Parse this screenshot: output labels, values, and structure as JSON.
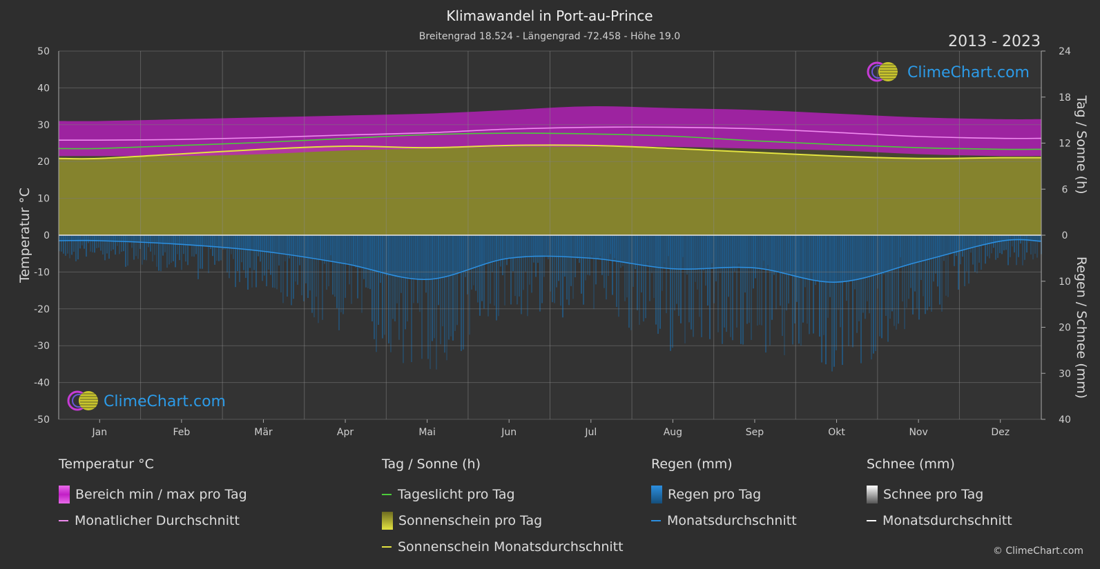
{
  "title": "Klimawandel in Port-au-Prince",
  "subtitle": "Breitengrad 18.524 - Längengrad -72.458 - Höhe 19.0",
  "year_range": "2013 - 2023",
  "brand": "ClimeChart.com",
  "copyright": "© ClimeChart.com",
  "colors": {
    "background": "#2e2e2e",
    "temp_range": "#c21fc6",
    "temp_mean": "#f08cf0",
    "daylight": "#4ccc3a",
    "sunshine_fill": "#8e8c2c",
    "sunshine_mean": "#e3e341",
    "rain": "#1a6fb0",
    "rain_mean": "#2c8fe0",
    "snow_mean": "#ffffff",
    "brand": "#2c9be8"
  },
  "legend": {
    "temp": {
      "header": "Temperatur °C",
      "range": "Bereich min / max pro Tag",
      "mean": "Monatlicher Durchschnitt"
    },
    "sun": {
      "header": "Tag / Sonne (h)",
      "daylight": "Tageslicht pro Tag",
      "sunshine": "Sonnenschein pro Tag",
      "sunshine_mean": "Sonnenschein Monatsdurchschnitt"
    },
    "rain": {
      "header": "Regen (mm)",
      "daily": "Regen pro Tag",
      "mean": "Monatsdurchschnitt"
    },
    "snow": {
      "header": "Schnee (mm)",
      "daily": "Schnee pro Tag",
      "mean": "Monatsdurchschnitt"
    }
  },
  "chart_data": {
    "type": "line",
    "categories": [
      "Jan",
      "Feb",
      "Mär",
      "Apr",
      "Mai",
      "Jun",
      "Jul",
      "Aug",
      "Sep",
      "Okt",
      "Nov",
      "Dez"
    ],
    "left_axis": {
      "label": "Temperatur °C",
      "ylim": [
        -50,
        50
      ],
      "ticks": [
        50,
        40,
        30,
        20,
        10,
        0,
        -10,
        -20,
        -30,
        -40,
        -50
      ]
    },
    "right_axis_top": {
      "label": "Tag / Sonne (h)",
      "ylim": [
        0,
        24
      ],
      "ticks": [
        24,
        18,
        12,
        6,
        0
      ]
    },
    "right_axis_bottom": {
      "label": "Regen / Schnee (mm)",
      "ylim": [
        0,
        40
      ],
      "ticks": [
        0,
        10,
        20,
        30,
        40
      ]
    },
    "grid": true,
    "series": [
      {
        "name": "Bereich min / max pro Tag",
        "axis": "temp",
        "min": [
          21.5,
          21.5,
          22,
          23,
          23.5,
          24,
          24,
          24,
          23.5,
          23,
          22,
          21.5
        ],
        "max": [
          31,
          31.5,
          32,
          32.5,
          33,
          34,
          35,
          34.5,
          34,
          33,
          32,
          31.5
        ]
      },
      {
        "name": "Monatlicher Durchschnitt",
        "axis": "temp",
        "values": [
          25.8,
          26,
          26.5,
          27.2,
          27.8,
          28.8,
          29.3,
          29.3,
          28.9,
          27.9,
          26.8,
          26.3
        ]
      },
      {
        "name": "Tageslicht pro Tag",
        "axis": "sun",
        "values": [
          11.3,
          11.7,
          12.1,
          12.6,
          13.1,
          13.3,
          13.2,
          12.9,
          12.3,
          11.8,
          11.4,
          11.2
        ]
      },
      {
        "name": "Sonnenschein Monatsdurchschnitt",
        "axis": "sun",
        "values": [
          10.0,
          10.6,
          11.2,
          11.6,
          11.4,
          11.7,
          11.7,
          11.3,
          10.8,
          10.3,
          10.0,
          10.1
        ]
      },
      {
        "name": "Monatsdurchschnitt",
        "axis": "rain",
        "values": [
          1.2,
          2.0,
          3.5,
          6.2,
          9.6,
          5.0,
          5.0,
          7.3,
          7.1,
          10.2,
          5.8,
          1.3
        ]
      },
      {
        "name": "Monatsdurchschnitt",
        "axis": "snow",
        "values": [
          0,
          0,
          0,
          0,
          0,
          0,
          0,
          0,
          0,
          0,
          0,
          0
        ]
      }
    ]
  }
}
